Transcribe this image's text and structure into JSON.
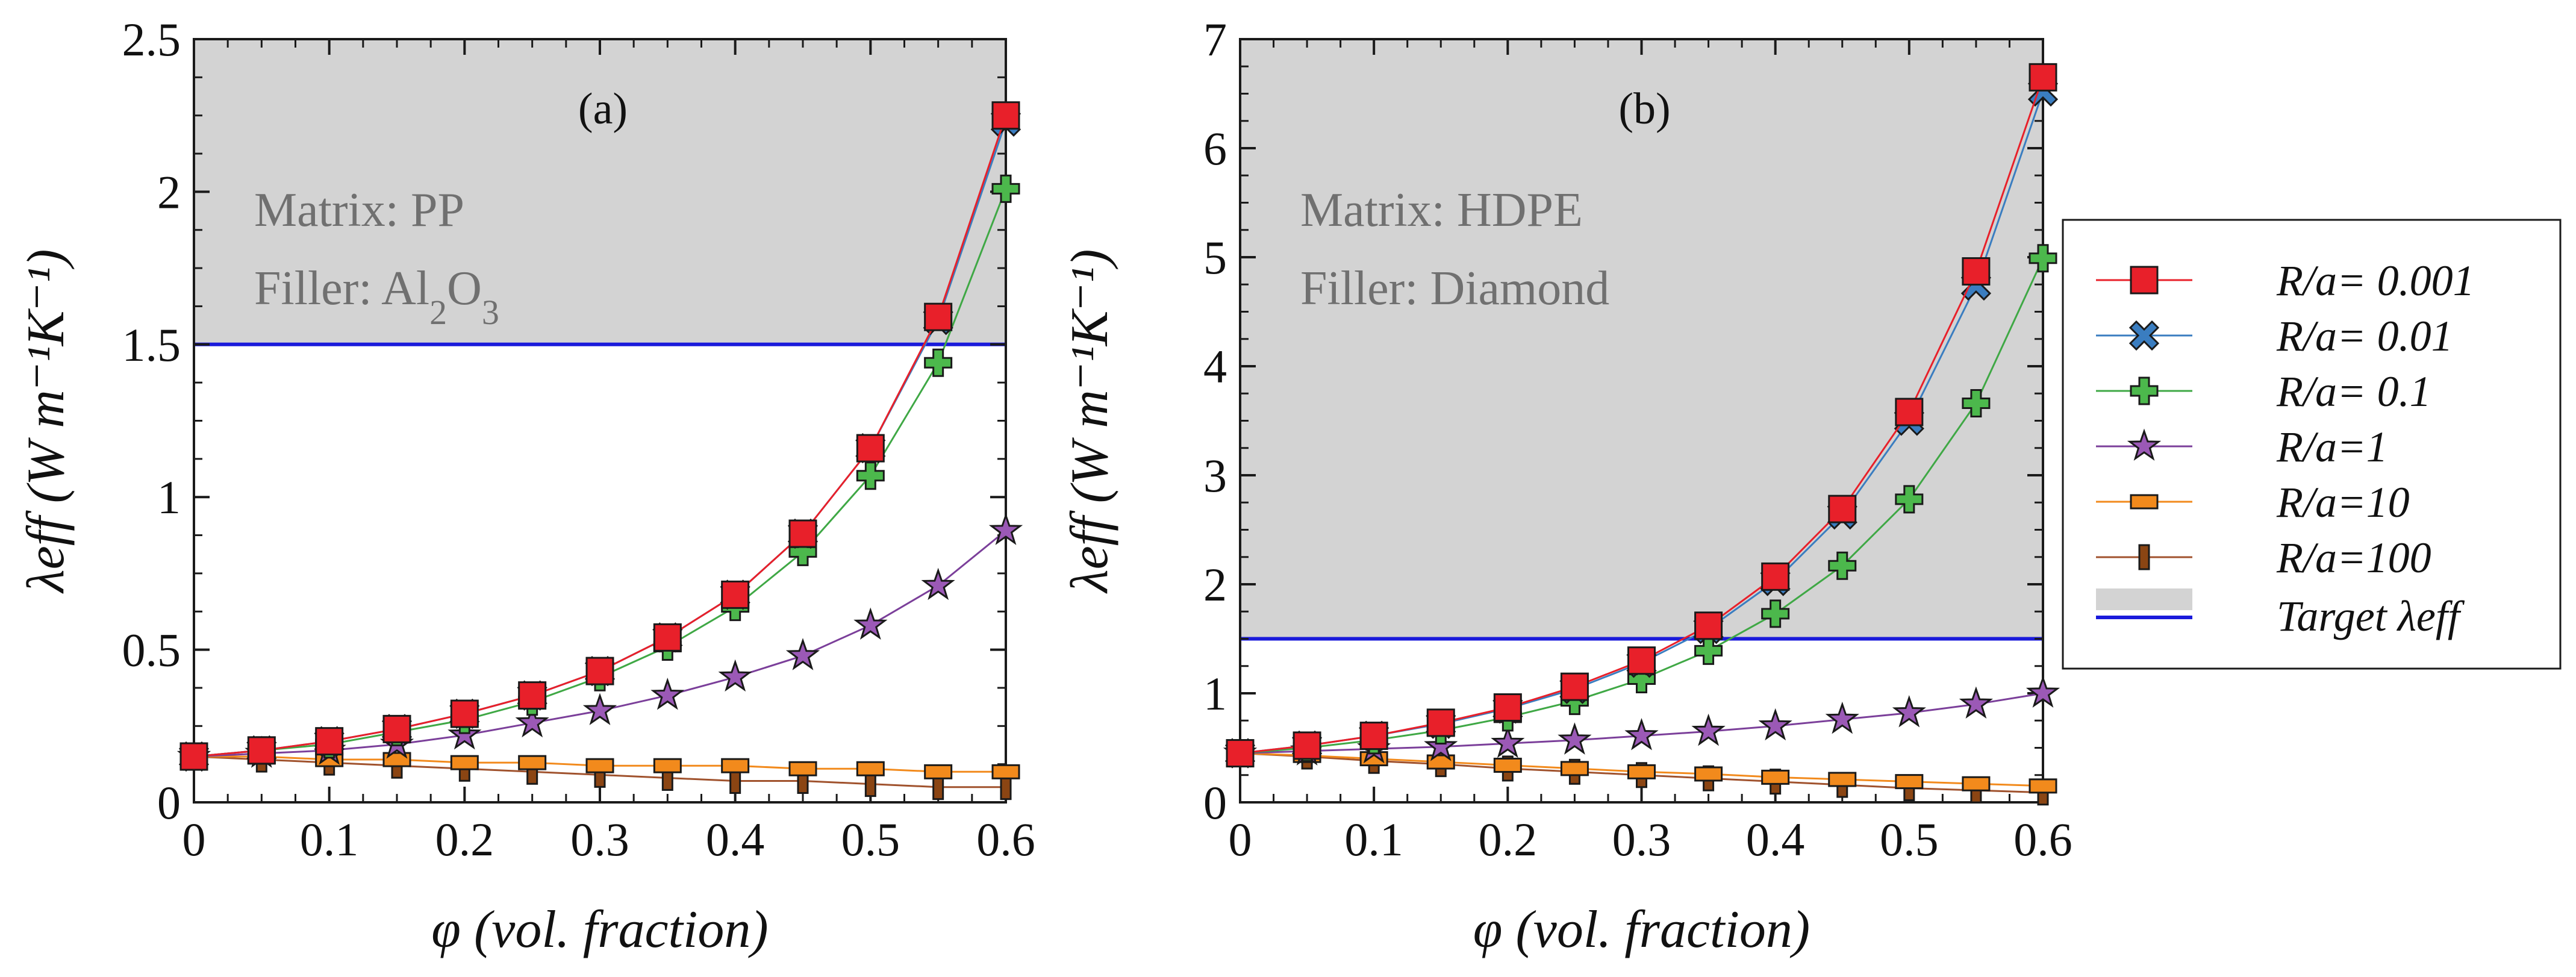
{
  "chart_data": [
    {
      "type": "line",
      "panel_label": "(a)",
      "annotation_lines": [
        "Matrix: PP",
        "Filler: Al2O3"
      ],
      "xlabel": "φ (vol. fraction)",
      "ylabel": "λeff (W m⁻¹K⁻¹)",
      "xlim": [
        0,
        0.6
      ],
      "ylim": [
        0,
        2.5
      ],
      "xticks": [
        "0",
        "0.1",
        "0.2",
        "0.3",
        "0.4",
        "0.5",
        "0.6"
      ],
      "yticks": [
        "0",
        "0.5",
        "1",
        "1.5",
        "2",
        "2.5"
      ],
      "target": 1.5,
      "x": [
        0,
        0.05,
        0.1,
        0.15,
        0.2,
        0.25,
        0.3,
        0.35,
        0.4,
        0.45,
        0.5,
        0.55,
        0.6
      ],
      "series": [
        {
          "name": "R/a= 0.001",
          "values": [
            0.15,
            0.17,
            0.2,
            0.24,
            0.29,
            0.35,
            0.43,
            0.54,
            0.68,
            0.88,
            1.16,
            1.59,
            2.25
          ]
        },
        {
          "name": "R/a= 0.01",
          "values": [
            0.15,
            0.17,
            0.2,
            0.24,
            0.29,
            0.35,
            0.43,
            0.54,
            0.68,
            0.88,
            1.16,
            1.58,
            2.23
          ]
        },
        {
          "name": "R/a= 0.1",
          "values": [
            0.15,
            0.17,
            0.19,
            0.23,
            0.27,
            0.33,
            0.41,
            0.51,
            0.64,
            0.82,
            1.07,
            1.44,
            2.01
          ]
        },
        {
          "name": "R/a=1",
          "values": [
            0.15,
            0.16,
            0.17,
            0.19,
            0.22,
            0.26,
            0.3,
            0.35,
            0.41,
            0.48,
            0.58,
            0.71,
            0.89
          ]
        },
        {
          "name": "R/a=10",
          "values": [
            0.15,
            0.15,
            0.14,
            0.14,
            0.13,
            0.13,
            0.12,
            0.12,
            0.12,
            0.11,
            0.11,
            0.1,
            0.1
          ]
        },
        {
          "name": "R/a=100",
          "values": [
            0.15,
            0.14,
            0.13,
            0.12,
            0.11,
            0.1,
            0.09,
            0.08,
            0.07,
            0.07,
            0.06,
            0.05,
            0.05
          ]
        }
      ]
    },
    {
      "type": "line",
      "panel_label": "(b)",
      "annotation_lines": [
        "Matrix: HDPE",
        "Filler: Diamond"
      ],
      "xlabel": "φ (vol. fraction)",
      "ylabel": "λeff (W m⁻¹K⁻¹)",
      "xlim": [
        0,
        0.6
      ],
      "ylim": [
        0,
        7
      ],
      "xticks": [
        "0",
        "0.1",
        "0.2",
        "0.3",
        "0.4",
        "0.5",
        "0.6"
      ],
      "yticks": [
        "0",
        "1",
        "2",
        "3",
        "4",
        "5",
        "6",
        "7"
      ],
      "target": 1.5,
      "x": [
        0,
        0.05,
        0.1,
        0.15,
        0.2,
        0.25,
        0.3,
        0.35,
        0.4,
        0.45,
        0.5,
        0.55,
        0.6
      ],
      "series": [
        {
          "name": "R/a= 0.001",
          "values": [
            0.45,
            0.52,
            0.61,
            0.73,
            0.87,
            1.06,
            1.3,
            1.62,
            2.07,
            2.69,
            3.58,
            4.87,
            6.65
          ]
        },
        {
          "name": "R/a= 0.01",
          "values": [
            0.45,
            0.52,
            0.61,
            0.72,
            0.86,
            1.04,
            1.28,
            1.59,
            2.03,
            2.64,
            3.5,
            4.74,
            6.52
          ]
        },
        {
          "name": "R/a= 0.1",
          "values": [
            0.45,
            0.5,
            0.57,
            0.66,
            0.78,
            0.93,
            1.13,
            1.39,
            1.73,
            2.17,
            2.78,
            3.66,
            4.99
          ]
        },
        {
          "name": "R/a=1",
          "values": [
            0.45,
            0.47,
            0.49,
            0.51,
            0.54,
            0.57,
            0.61,
            0.65,
            0.7,
            0.76,
            0.82,
            0.9,
            1.0
          ]
        },
        {
          "name": "R/a=10",
          "values": [
            0.45,
            0.43,
            0.4,
            0.37,
            0.34,
            0.31,
            0.28,
            0.26,
            0.23,
            0.21,
            0.19,
            0.17,
            0.15
          ]
        },
        {
          "name": "R/a=100",
          "values": [
            0.45,
            0.42,
            0.38,
            0.35,
            0.31,
            0.28,
            0.25,
            0.22,
            0.19,
            0.16,
            0.13,
            0.11,
            0.09
          ]
        }
      ]
    }
  ],
  "legend": {
    "entries": [
      "R/a= 0.001",
      "R/a= 0.01",
      "R/a= 0.1",
      "R/a=1",
      "R/a=10",
      "R/a=100",
      "Target λeff"
    ]
  },
  "styles": {
    "series_colors": [
      "#e8202a",
      "#3a7dc0",
      "#3fa845",
      "#7b3f9a",
      "#f28a1c",
      "#a0522d"
    ],
    "marker_fills": [
      "#e8202a",
      "#3a7dc0",
      "#4cb84c",
      "#9b59b6",
      "#f28a1c",
      "#8b4513"
    ],
    "markers": [
      "square",
      "x",
      "plus",
      "star",
      "bar",
      "tick"
    ],
    "target_color": "#1a1adb",
    "region_color": "#d3d3d3"
  }
}
